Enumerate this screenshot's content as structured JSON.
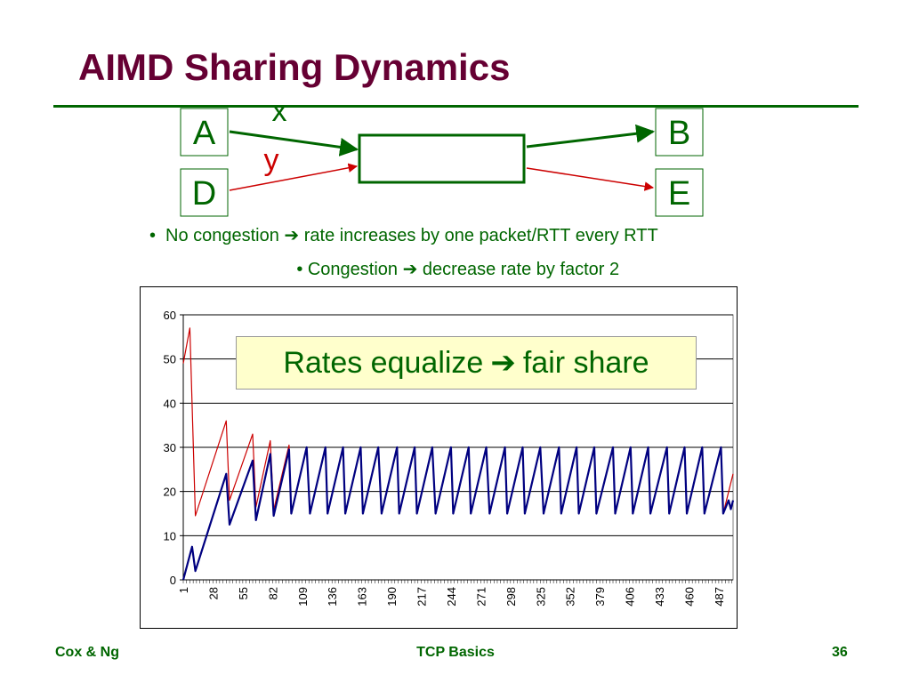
{
  "slide": {
    "title": "AIMD Sharing Dynamics",
    "bullets": [
      {
        "before": "No congestion ",
        "arrow": "➔",
        "after": " rate increases by one packet/RTT every RTT"
      },
      {
        "before": "Congestion ",
        "arrow": "➔",
        "after": " decrease rate by factor 2"
      }
    ],
    "callout": {
      "before": "Rates equalize ",
      "arrow": "➔",
      "after": " fair share"
    },
    "footer": {
      "left": "Cox & Ng",
      "center": "TCP Basics",
      "right": "36"
    }
  },
  "diagram": {
    "nodes": {
      "a": "A",
      "b": "B",
      "d": "D",
      "e": "E"
    },
    "flows": {
      "x": "x",
      "y": "y"
    },
    "colors": {
      "x_flow": "#006600",
      "y_flow": "#cc0000",
      "box": "#006600"
    }
  },
  "chart_data": {
    "type": "line",
    "x_range": [
      1,
      500
    ],
    "ylim": [
      0,
      60
    ],
    "yticks": [
      0,
      10,
      20,
      30,
      40,
      50,
      60
    ],
    "x_tick_labels": [
      "1",
      "28",
      "55",
      "82",
      "109",
      "136",
      "163",
      "190",
      "217",
      "244",
      "271",
      "298",
      "325",
      "352",
      "379",
      "406",
      "433",
      "460",
      "487"
    ],
    "gridlines": "horizontal",
    "legend": "none",
    "series": [
      {
        "color": "#cc0000",
        "points": [
          [
            1,
            49
          ],
          [
            7,
            57
          ],
          [
            12,
            14.5
          ],
          [
            40,
            36
          ],
          [
            43,
            18
          ],
          [
            64,
            33
          ],
          [
            67,
            16.5
          ],
          [
            80,
            31.5
          ],
          [
            83,
            15.8
          ],
          [
            97,
            30.5
          ],
          [
            99,
            15.3
          ],
          [
            113,
            30
          ],
          [
            116,
            15
          ],
          [
            130,
            30
          ],
          [
            132,
            15
          ],
          [
            146,
            30
          ],
          [
            148,
            15
          ],
          [
            162,
            30
          ],
          [
            164,
            15
          ],
          [
            178,
            30
          ],
          [
            181,
            15
          ],
          [
            195,
            30
          ],
          [
            197,
            15
          ],
          [
            211,
            30
          ],
          [
            213,
            15
          ],
          [
            227,
            30
          ],
          [
            230,
            15
          ],
          [
            244,
            30
          ],
          [
            246,
            15
          ],
          [
            260,
            30
          ],
          [
            262,
            15
          ],
          [
            276,
            30
          ],
          [
            279,
            15
          ],
          [
            293,
            30
          ],
          [
            295,
            15
          ],
          [
            309,
            30
          ],
          [
            311,
            15
          ],
          [
            325,
            30
          ],
          [
            328,
            15
          ],
          [
            342,
            30
          ],
          [
            344,
            15
          ],
          [
            358,
            30
          ],
          [
            360,
            15
          ],
          [
            374,
            30
          ],
          [
            376,
            15
          ],
          [
            391,
            30
          ],
          [
            393,
            15
          ],
          [
            407,
            30
          ],
          [
            409,
            15
          ],
          [
            423,
            30
          ],
          [
            425,
            15
          ],
          [
            440,
            30
          ],
          [
            442,
            15
          ],
          [
            456,
            30
          ],
          [
            458,
            15
          ],
          [
            472,
            30
          ],
          [
            474,
            15
          ],
          [
            489,
            30
          ],
          [
            491,
            15
          ],
          [
            500,
            24
          ]
        ]
      },
      {
        "color": "#000080",
        "points": [
          [
            1,
            0
          ],
          [
            9,
            7.5
          ],
          [
            12,
            2
          ],
          [
            40,
            24
          ],
          [
            43,
            12.5
          ],
          [
            64,
            27
          ],
          [
            67,
            13.5
          ],
          [
            80,
            28.5
          ],
          [
            83,
            14.5
          ],
          [
            97,
            29.5
          ],
          [
            99,
            15
          ],
          [
            113,
            30
          ],
          [
            116,
            15
          ],
          [
            130,
            30
          ],
          [
            132,
            15
          ],
          [
            146,
            30
          ],
          [
            148,
            15
          ],
          [
            162,
            30
          ],
          [
            164,
            15
          ],
          [
            178,
            30
          ],
          [
            181,
            15
          ],
          [
            195,
            30
          ],
          [
            197,
            15
          ],
          [
            211,
            30
          ],
          [
            213,
            15
          ],
          [
            227,
            30
          ],
          [
            230,
            15
          ],
          [
            244,
            30
          ],
          [
            246,
            15
          ],
          [
            260,
            30
          ],
          [
            262,
            15
          ],
          [
            276,
            30
          ],
          [
            279,
            15
          ],
          [
            293,
            30
          ],
          [
            295,
            15
          ],
          [
            309,
            30
          ],
          [
            311,
            15
          ],
          [
            325,
            30
          ],
          [
            328,
            15
          ],
          [
            342,
            30
          ],
          [
            344,
            15
          ],
          [
            358,
            30
          ],
          [
            360,
            15
          ],
          [
            374,
            30
          ],
          [
            376,
            15
          ],
          [
            391,
            30
          ],
          [
            393,
            15
          ],
          [
            407,
            30
          ],
          [
            409,
            15
          ],
          [
            423,
            30
          ],
          [
            425,
            15
          ],
          [
            440,
            30
          ],
          [
            442,
            15
          ],
          [
            456,
            30
          ],
          [
            458,
            15
          ],
          [
            472,
            30
          ],
          [
            474,
            15
          ],
          [
            489,
            30
          ],
          [
            491,
            15
          ],
          [
            496,
            18
          ],
          [
            498,
            16
          ],
          [
            500,
            18
          ]
        ]
      }
    ]
  }
}
